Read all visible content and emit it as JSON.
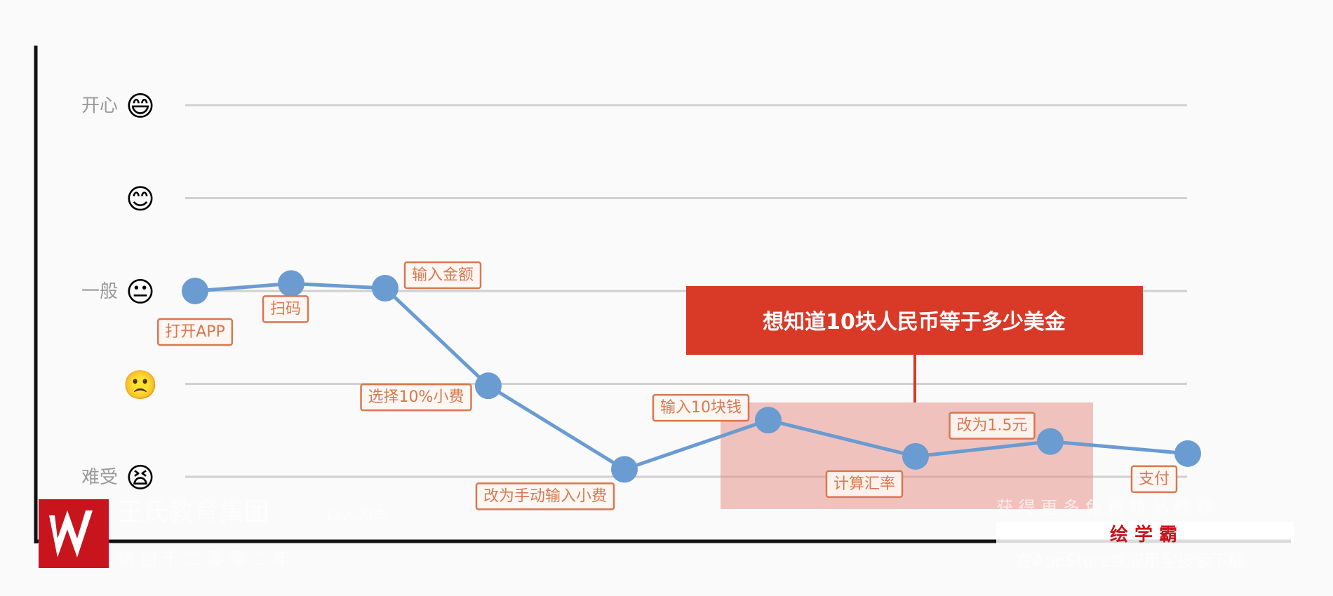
{
  "chart_data": {
    "type": "line",
    "title": "",
    "xlabel": "",
    "ylabel": "",
    "ylim": [
      1,
      5
    ],
    "y_ticks": [
      {
        "value": 5,
        "label": "开心",
        "emoji": "😄",
        "icon": "grinning-face-icon"
      },
      {
        "value": 4,
        "label": "",
        "emoji": "😊",
        "icon": "smiling-face-icon"
      },
      {
        "value": 3,
        "label": "一般",
        "emoji": "😐",
        "icon": "neutral-face-icon"
      },
      {
        "value": 2,
        "label": "",
        "emoji": "🙁",
        "icon": "slightly-frowning-face-icon"
      },
      {
        "value": 1,
        "label": "难受",
        "emoji": "😫",
        "icon": "tired-face-icon"
      }
    ],
    "grid": true,
    "line_color": "#6a9bd1",
    "label_color": "#d9774f",
    "points": [
      {
        "label": "打开APP",
        "value": 3.0
      },
      {
        "label": "扫码",
        "value": 3.08
      },
      {
        "label": "输入金额",
        "value": 3.03
      },
      {
        "label": "选择10%小费",
        "value": 1.98
      },
      {
        "label": "改为手动输入小费",
        "value": 1.08
      },
      {
        "label": "输入10块钱",
        "value": 1.61
      },
      {
        "label": "计算汇率",
        "value": 1.22
      },
      {
        "label": "改为1.5元",
        "value": 1.38
      },
      {
        "label": "支付",
        "value": 1.25
      }
    ],
    "annotation": {
      "text": "想知道10块人民币等于多少美金",
      "color": "#d93a28",
      "highlight_color": "#e58a80"
    }
  },
  "watermark": {
    "company": "王氏教育集团",
    "slogan": "以人为本",
    "founded": "始 创 于 二 零 零 二 年",
    "promo": "获 得 更 多 免 费 精 品 教 程",
    "app_name": "绘 学 霸",
    "download": "在AppStore或应用宝搜索下载"
  }
}
